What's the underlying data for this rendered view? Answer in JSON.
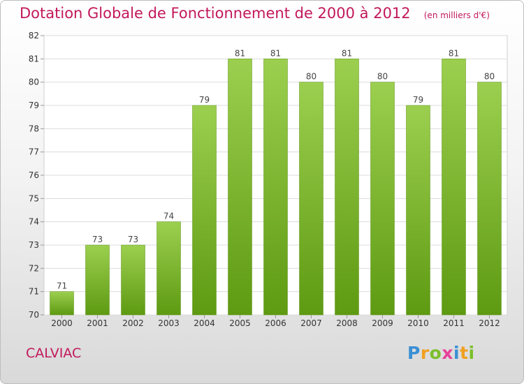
{
  "title": "Dotation Globale de Fonctionnement de 2000 à 2012",
  "unit_note": "(en milliers d'€)",
  "town": "CALVIAC",
  "logo": {
    "letters": [
      "P",
      "r",
      "o",
      "x",
      "i",
      "t",
      "i"
    ],
    "colors": [
      "#3b8fd4",
      "#f0a020",
      "#7cbf2a",
      "#e8409a",
      "#3b8fd4",
      "#f0a020",
      "#7cbf2a"
    ]
  },
  "colors": {
    "bar_top": "#9ccf4f",
    "bar_bottom": "#5e9a12",
    "title": "#c2185b"
  },
  "chart_data": {
    "type": "bar",
    "title": "Dotation Globale de Fonctionnement de 2000 à 2012",
    "categories": [
      "2000",
      "2001",
      "2002",
      "2003",
      "2004",
      "2005",
      "2006",
      "2007",
      "2008",
      "2009",
      "2010",
      "2011",
      "2012"
    ],
    "values": [
      71,
      73,
      73,
      74,
      79,
      81,
      81,
      80,
      81,
      80,
      79,
      81,
      80
    ],
    "value_labels": [
      "71",
      "73",
      "73",
      "74",
      "79",
      "81",
      "81",
      "80",
      "81",
      "80",
      "79",
      "81",
      "80"
    ],
    "yticks": [
      "70",
      "71",
      "72",
      "73",
      "74",
      "75",
      "76",
      "77",
      "78",
      "79",
      "80",
      "81",
      "82"
    ],
    "ylim": [
      70,
      82
    ],
    "grid": true
  }
}
